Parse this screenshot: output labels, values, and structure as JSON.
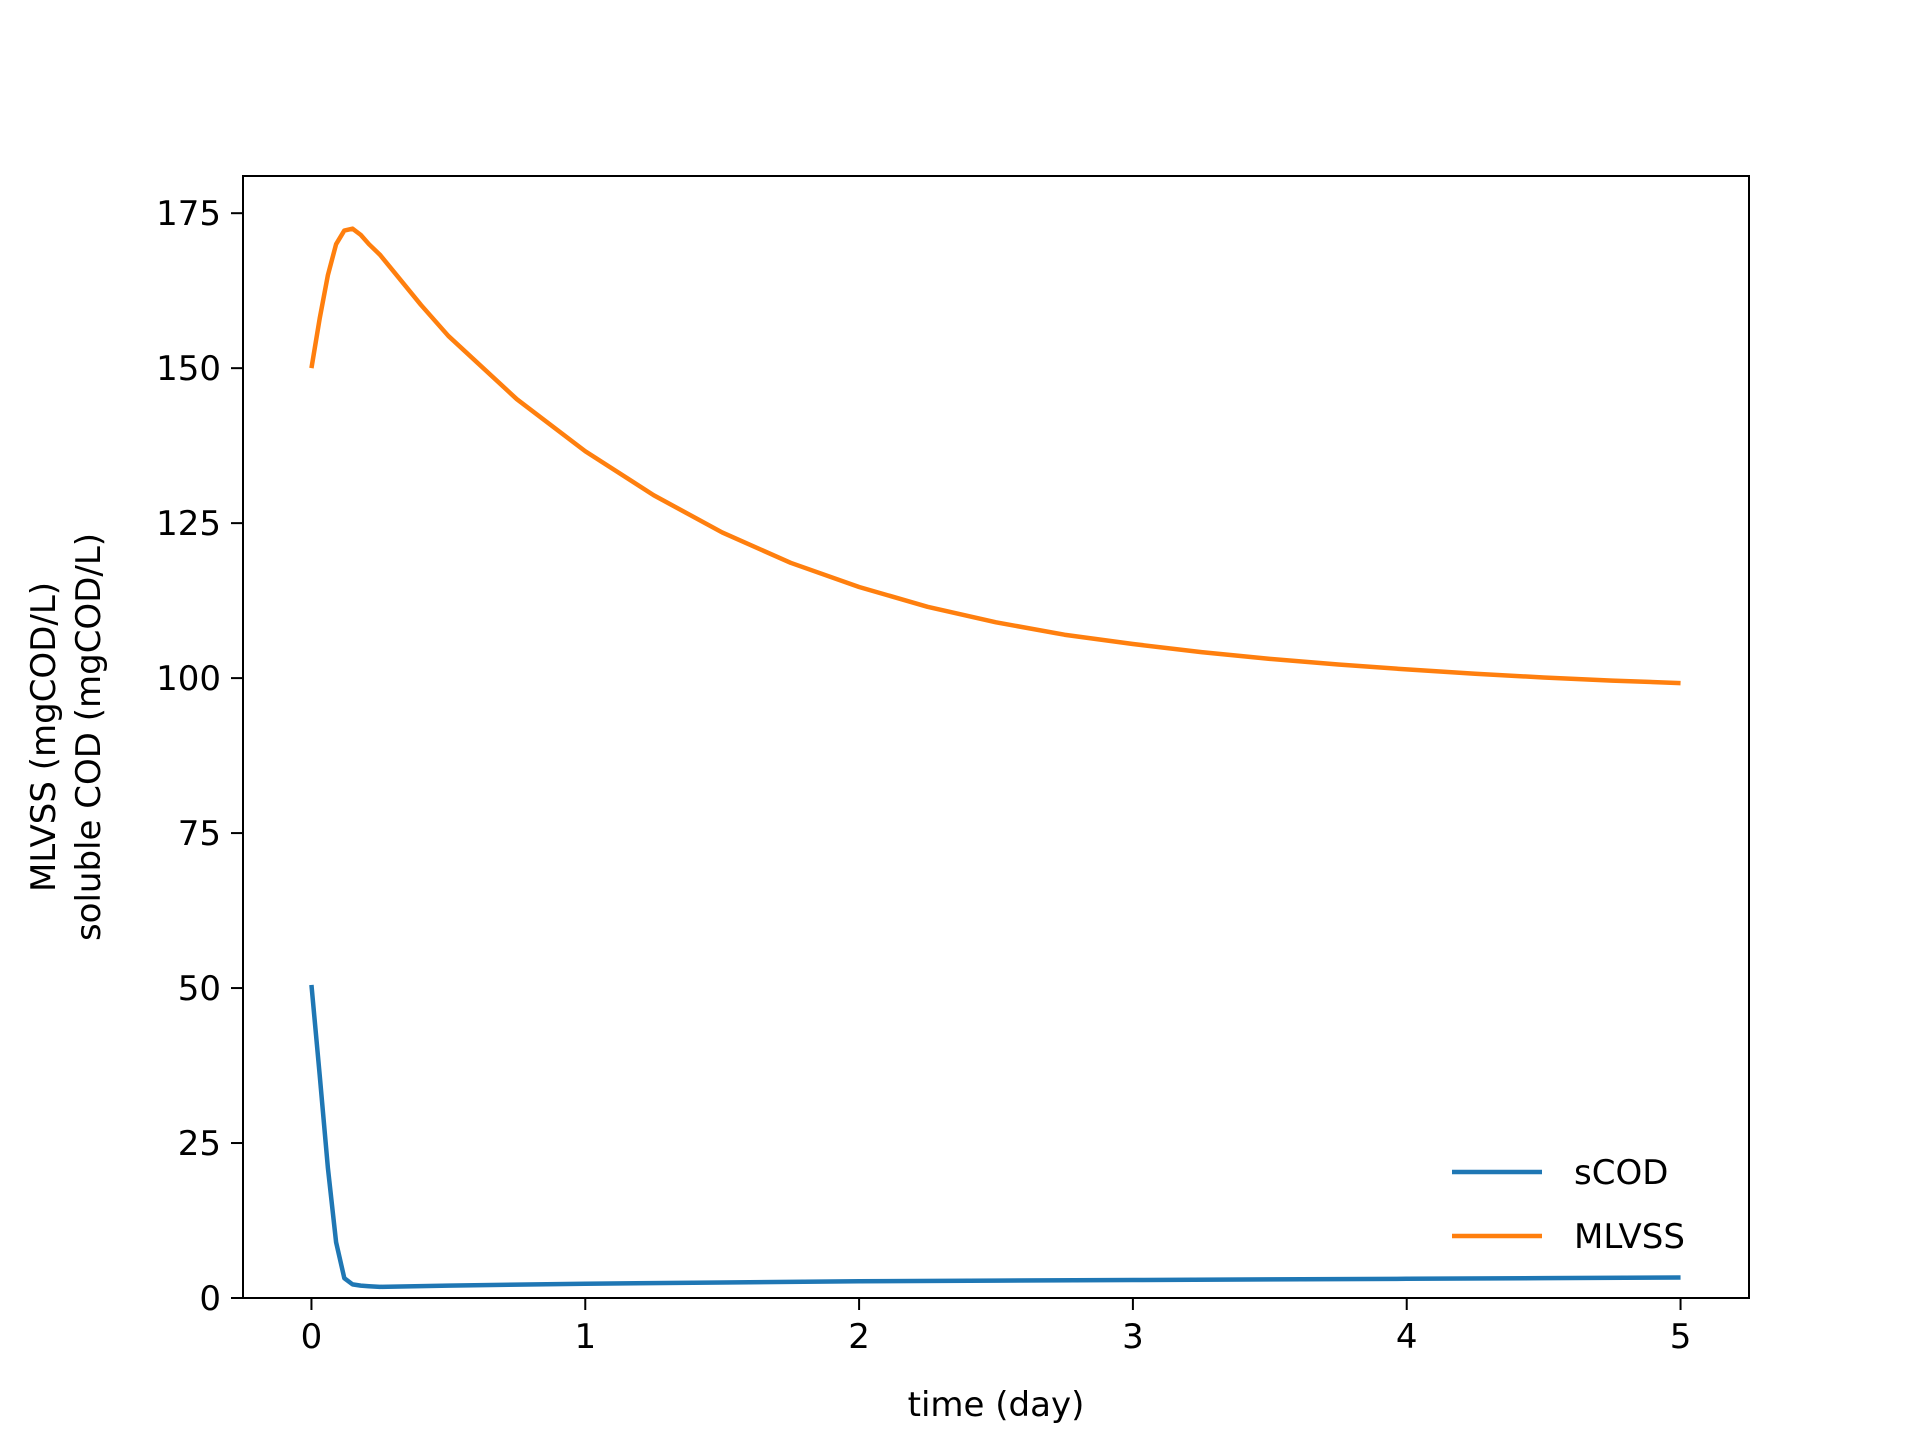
{
  "chart_data": {
    "type": "line",
    "title": "",
    "xlabel": "time (day)",
    "ylabel_lines": [
      "MLVSS (mgCOD/L)",
      "soluble COD (mgCOD/L)"
    ],
    "xlim": [
      -0.25,
      5.25
    ],
    "ylim": [
      0,
      181
    ],
    "xticks": [
      0,
      1,
      2,
      3,
      4,
      5
    ],
    "yticks": [
      0,
      25,
      50,
      75,
      100,
      125,
      150,
      175
    ],
    "grid": false,
    "legend_position": "lower right",
    "series": [
      {
        "name": "sCOD",
        "color": "#1f77b4",
        "x": [
          0,
          0.03,
          0.06,
          0.09,
          0.12,
          0.15,
          0.18,
          0.21,
          0.25,
          0.5,
          1,
          1.5,
          2,
          2.5,
          3,
          3.5,
          4,
          4.5,
          5
        ],
        "y": [
          50.5,
          36,
          21,
          9,
          3.2,
          2.2,
          2.0,
          1.9,
          1.8,
          2.0,
          2.3,
          2.5,
          2.7,
          2.8,
          2.9,
          3.0,
          3.1,
          3.2,
          3.3
        ]
      },
      {
        "name": "MLVSS",
        "color": "#ff7f0e",
        "x": [
          0,
          0.03,
          0.06,
          0.09,
          0.12,
          0.15,
          0.18,
          0.21,
          0.25,
          0.3,
          0.4,
          0.5,
          0.75,
          1,
          1.25,
          1.5,
          1.75,
          2,
          2.25,
          2.5,
          2.75,
          3,
          3.25,
          3.5,
          3.75,
          4,
          4.25,
          4.5,
          4.75,
          5
        ],
        "y": [
          150,
          158,
          165,
          170,
          172.2,
          172.5,
          171.5,
          170,
          168.3,
          165.6,
          160.2,
          155.2,
          145.0,
          136.6,
          129.5,
          123.5,
          118.6,
          114.7,
          111.5,
          109.0,
          107.0,
          105.5,
          104.2,
          103.1,
          102.2,
          101.4,
          100.7,
          100.1,
          99.6,
          99.2
        ]
      }
    ]
  }
}
